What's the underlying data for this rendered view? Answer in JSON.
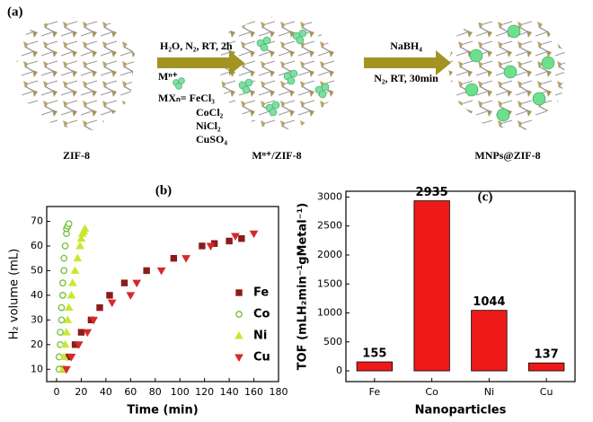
{
  "diagram": {
    "label": "(a)",
    "step1": {
      "conditions": "H₂O, N₂, RT, 2h",
      "ion": "Mⁿ⁺",
      "salts": [
        "MXₙ= FeCl₃",
        "CoCl₂",
        "NiCl₂",
        "CuSO₄"
      ]
    },
    "step2": {
      "reagent": "NaBH₄",
      "conditions": "N₂, RT, 30min"
    },
    "stages": [
      "ZIF-8",
      "Mⁿ⁺/ZIF-8",
      "MNPs@ZIF-8"
    ]
  },
  "chart_data": [
    {
      "type": "scatter",
      "label": "(b)",
      "x_label": "Time (min)",
      "y_label": "H₂ volume (mL)",
      "xlim": [
        -8,
        180
      ],
      "ylim": [
        5,
        76
      ],
      "xticks": [
        0,
        20,
        40,
        60,
        80,
        100,
        120,
        140,
        160,
        180
      ],
      "yticks": [
        10,
        20,
        30,
        40,
        50,
        60,
        70
      ],
      "legend": "right",
      "series": [
        {
          "name": "Fe",
          "color": "#8b1c1c",
          "marker": "square",
          "x": [
            5,
            10,
            15,
            20,
            28,
            35,
            43,
            55,
            73,
            95,
            118,
            128,
            140,
            150
          ],
          "values": [
            10,
            15,
            20,
            25,
            30,
            35,
            40,
            45,
            50,
            55,
            60,
            61,
            62,
            63
          ]
        },
        {
          "name": "Co",
          "color": "#6fbf3a",
          "marker": "circle",
          "x": [
            2,
            2,
            3,
            3,
            4,
            4,
            5,
            5,
            6,
            6,
            7,
            8,
            8,
            9,
            10
          ],
          "values": [
            10,
            15,
            20,
            25,
            30,
            35,
            40,
            45,
            50,
            55,
            60,
            65,
            67,
            68,
            69
          ]
        },
        {
          "name": "Ni",
          "color": "#c8e830",
          "marker": "triangle-up",
          "x": [
            5,
            6,
            7,
            8,
            9,
            10,
            12,
            13,
            15,
            17,
            19,
            20,
            21,
            22,
            23
          ],
          "values": [
            10,
            15,
            20,
            25,
            30,
            35,
            40,
            45,
            50,
            55,
            60,
            63,
            65,
            66,
            67
          ]
        },
        {
          "name": "Cu",
          "color": "#d42a2a",
          "marker": "triangle-down",
          "x": [
            8,
            12,
            18,
            25,
            30,
            45,
            60,
            65,
            85,
            105,
            125,
            145,
            160
          ],
          "values": [
            10,
            15,
            20,
            25,
            30,
            37,
            40,
            45,
            50,
            55,
            60,
            64,
            65
          ]
        }
      ]
    },
    {
      "type": "bar",
      "label": "(c)",
      "x_label": "Nanoparticles",
      "y_label": "TOF (mLH₂min⁻¹gMetal⁻¹)",
      "categories": [
        "Fe",
        "Co",
        "Ni",
        "Cu"
      ],
      "values": [
        155,
        2935,
        1044,
        137
      ],
      "color": "#ee1a1a",
      "ylim": [
        -185,
        3100
      ],
      "yticks": [
        0,
        500,
        1000,
        1500,
        2000,
        2500,
        3000
      ]
    }
  ]
}
